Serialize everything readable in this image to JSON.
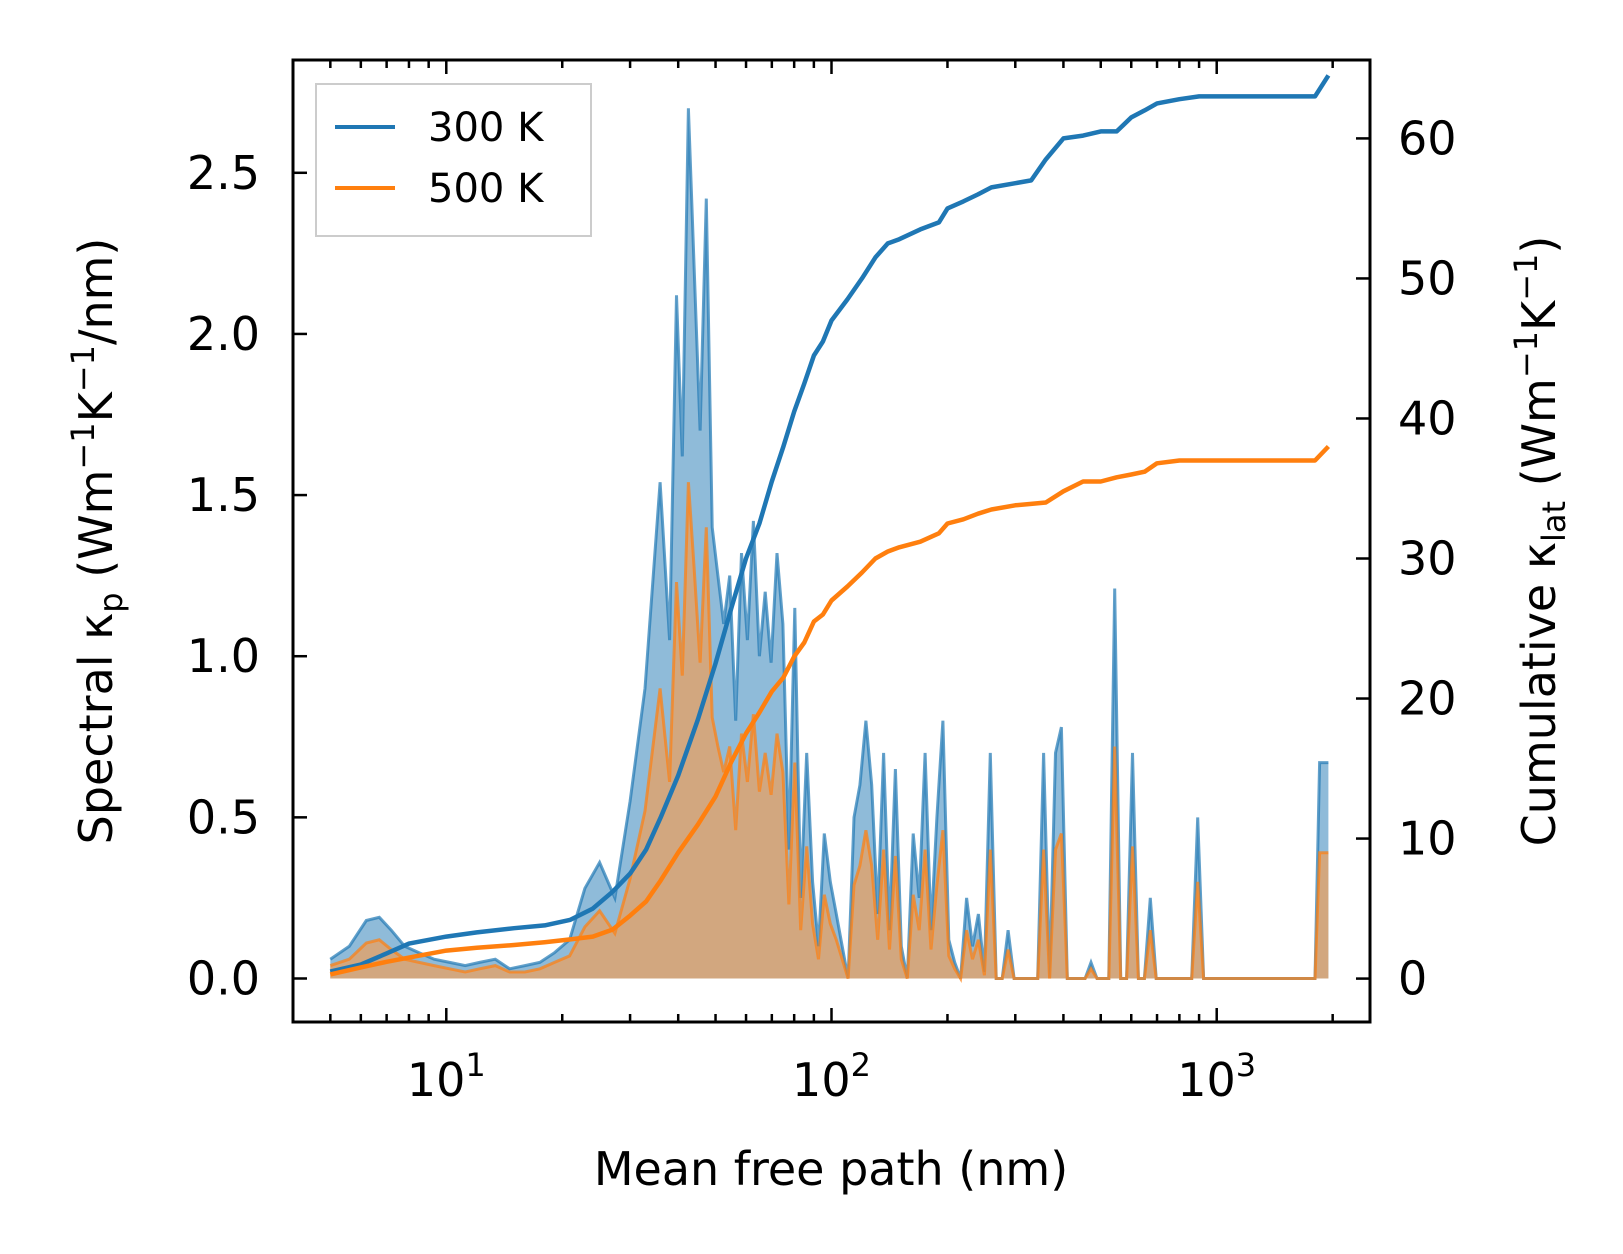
{
  "chart_data": {
    "type": "area",
    "xlabel": "Mean free path (nm)",
    "ylabel_left": {
      "main": "Spectral κ",
      "sub": "p",
      "units_open": " (Wm",
      "sup1": "−1",
      "k": "K",
      "sup2": "−1",
      "units_close": "/nm)"
    },
    "ylabel_right": {
      "main": "Cumulative κ",
      "sub": "lat",
      "units_open": " (Wm",
      "sup1": "−1",
      "k": "K",
      "sup2": "−1",
      "units_close": ")"
    },
    "x_scale": "log",
    "xlim": [
      4,
      2500
    ],
    "ylim_left": [
      -0.135,
      2.85
    ],
    "ylim_right": [
      -3.1,
      65.6
    ],
    "x_ticks": [
      {
        "value": 10,
        "base": "10",
        "exp": "1"
      },
      {
        "value": 100,
        "base": "10",
        "exp": "2"
      },
      {
        "value": 1000,
        "base": "10",
        "exp": "3"
      }
    ],
    "y_ticks_left": [
      {
        "value": 0.0,
        "label": "0.0"
      },
      {
        "value": 0.5,
        "label": "0.5"
      },
      {
        "value": 1.0,
        "label": "1.0"
      },
      {
        "value": 1.5,
        "label": "1.5"
      },
      {
        "value": 2.0,
        "label": "2.0"
      },
      {
        "value": 2.5,
        "label": "2.5"
      }
    ],
    "y_ticks_right": [
      {
        "value": 0,
        "label": "0"
      },
      {
        "value": 10,
        "label": "10"
      },
      {
        "value": 20,
        "label": "20"
      },
      {
        "value": 30,
        "label": "30"
      },
      {
        "value": 40,
        "label": "40"
      },
      {
        "value": 50,
        "label": "50"
      },
      {
        "value": 60,
        "label": "60"
      }
    ],
    "legend": {
      "position": "top-left",
      "entries": [
        {
          "label": "300 K",
          "color": "#1f77b4"
        },
        {
          "label": "500 K",
          "color": "#ff7f0e"
        }
      ]
    },
    "spectral_series": [
      {
        "name": "300 K",
        "color": "#1f77b4",
        "fill": "#1f77b4",
        "x": [
          5.0,
          5.6,
          6.2,
          6.7,
          7.2,
          7.8,
          8.5,
          9.3,
          10.2,
          11.2,
          12.2,
          13.4,
          14.6,
          16.0,
          17.5,
          19.1,
          20.9,
          22.9,
          25.0,
          27.4,
          30.0,
          32.8,
          35.9,
          38.0,
          39.6,
          41.0,
          42.5,
          44.0,
          45.6,
          47.3,
          49.0,
          50.7,
          52.5,
          54.4,
          56.4,
          58.4,
          60.5,
          62.7,
          65.0,
          67.3,
          69.7,
          72.2,
          74.8,
          77.5,
          80.3,
          83.2,
          86.2,
          89.3,
          92.5,
          95.8,
          99.3,
          102.9,
          106.6,
          110.4,
          114.4,
          118.5,
          122.8,
          127.2,
          131.8,
          136.5,
          141.4,
          146.5,
          151.8,
          157.3,
          163.0,
          168.9,
          175.0,
          181.3,
          187.8,
          194.6,
          201.6,
          208.9,
          216.4,
          224.2,
          232.3,
          240.7,
          249.4,
          258.4,
          267.7,
          277.4,
          287.4,
          297.8,
          308.5,
          319.6,
          331.1,
          343.0,
          355.4,
          368.2,
          381.5,
          395.2,
          409.5,
          424.3,
          439.6,
          455.4,
          471.8,
          488.8,
          506.4,
          524.7,
          543.6,
          563.2,
          583.5,
          604.5,
          626.3,
          648.9,
          672.3,
          696.5,
          721.6,
          747.6,
          774.6,
          802.5,
          831.4,
          861.4,
          892.4,
          924.6,
          957.9,
          992.4,
          1500.0,
          1800.0,
          1850.0,
          1950.0
        ],
        "y": [
          0.06,
          0.1,
          0.18,
          0.19,
          0.15,
          0.1,
          0.08,
          0.06,
          0.05,
          0.04,
          0.05,
          0.06,
          0.03,
          0.04,
          0.05,
          0.08,
          0.12,
          0.28,
          0.36,
          0.25,
          0.55,
          0.9,
          1.54,
          1.05,
          2.12,
          1.62,
          2.7,
          2.2,
          1.7,
          2.42,
          1.4,
          1.25,
          1.1,
          1.25,
          0.8,
          1.32,
          1.05,
          1.42,
          1.0,
          1.2,
          0.98,
          1.32,
          1.1,
          0.4,
          1.15,
          0.25,
          0.7,
          0.3,
          0.1,
          0.45,
          0.3,
          0.2,
          0.1,
          0.0,
          0.5,
          0.6,
          0.8,
          0.6,
          0.2,
          0.7,
          0.15,
          0.65,
          0.1,
          0.0,
          0.45,
          0.25,
          0.7,
          0.15,
          0.5,
          0.8,
          0.12,
          0.05,
          0.0,
          0.25,
          0.1,
          0.2,
          0.02,
          0.7,
          0.0,
          0.0,
          0.15,
          0.0,
          0.0,
          0.0,
          0.0,
          0.0,
          0.7,
          0.0,
          0.7,
          0.78,
          0.0,
          0.0,
          0.0,
          0.0,
          0.05,
          0.0,
          0.0,
          0.0,
          1.21,
          0.0,
          0.0,
          0.7,
          0.0,
          0.0,
          0.25,
          0.0,
          0.0,
          0.0,
          0.0,
          0.0,
          0.0,
          0.0,
          0.5,
          0.0,
          0.0,
          0.0,
          0.0,
          0.0,
          0.67,
          0.67
        ]
      },
      {
        "name": "500 K",
        "color": "#ff7f0e",
        "fill": "#e8a060",
        "x": [
          5.0,
          5.6,
          6.2,
          6.7,
          7.2,
          7.8,
          8.5,
          9.3,
          10.2,
          11.2,
          12.2,
          13.4,
          14.6,
          16.0,
          17.5,
          19.1,
          20.9,
          22.9,
          25.0,
          27.4,
          30.0,
          32.8,
          35.9,
          38.0,
          39.6,
          41.0,
          42.5,
          44.0,
          45.6,
          47.3,
          49.0,
          50.7,
          52.5,
          54.4,
          56.4,
          58.4,
          60.5,
          62.7,
          65.0,
          67.3,
          69.7,
          72.2,
          74.8,
          77.5,
          80.3,
          83.2,
          86.2,
          89.3,
          92.5,
          95.8,
          99.3,
          102.9,
          106.6,
          110.4,
          114.4,
          118.5,
          122.8,
          127.2,
          131.8,
          136.5,
          141.4,
          146.5,
          151.8,
          157.3,
          163.0,
          168.9,
          175.0,
          181.3,
          187.8,
          194.6,
          201.6,
          208.9,
          216.4,
          224.2,
          232.3,
          240.7,
          249.4,
          258.4,
          267.7,
          277.4,
          287.4,
          297.8,
          308.5,
          319.6,
          331.1,
          343.0,
          355.4,
          368.2,
          381.5,
          395.2,
          409.5,
          424.3,
          439.6,
          455.4,
          471.8,
          488.8,
          506.4,
          524.7,
          543.6,
          563.2,
          583.5,
          604.5,
          626.3,
          648.9,
          672.3,
          696.5,
          721.6,
          747.6,
          774.6,
          802.5,
          831.4,
          861.4,
          892.4,
          924.6,
          957.9,
          992.4,
          1500.0,
          1800.0,
          1850.0,
          1950.0
        ],
        "y": [
          0.04,
          0.06,
          0.11,
          0.12,
          0.09,
          0.06,
          0.05,
          0.04,
          0.03,
          0.02,
          0.03,
          0.04,
          0.02,
          0.02,
          0.03,
          0.05,
          0.07,
          0.16,
          0.21,
          0.14,
          0.31,
          0.52,
          0.9,
          0.61,
          1.23,
          0.94,
          1.54,
          1.27,
          0.98,
          1.4,
          0.81,
          0.72,
          0.64,
          0.72,
          0.46,
          0.76,
          0.61,
          0.82,
          0.58,
          0.7,
          0.57,
          0.76,
          0.64,
          0.23,
          0.67,
          0.15,
          0.41,
          0.17,
          0.06,
          0.26,
          0.17,
          0.12,
          0.06,
          0.0,
          0.29,
          0.35,
          0.46,
          0.35,
          0.12,
          0.4,
          0.09,
          0.38,
          0.06,
          0.0,
          0.26,
          0.15,
          0.4,
          0.09,
          0.29,
          0.46,
          0.07,
          0.03,
          0.0,
          0.15,
          0.06,
          0.12,
          0.01,
          0.4,
          0.0,
          0.0,
          0.09,
          0.0,
          0.0,
          0.0,
          0.0,
          0.0,
          0.4,
          0.0,
          0.4,
          0.45,
          0.0,
          0.0,
          0.0,
          0.0,
          0.03,
          0.0,
          0.0,
          0.0,
          0.72,
          0.0,
          0.0,
          0.41,
          0.0,
          0.0,
          0.15,
          0.0,
          0.0,
          0.0,
          0.0,
          0.0,
          0.0,
          0.0,
          0.3,
          0.0,
          0.0,
          0.0,
          0.0,
          0.0,
          0.39,
          0.39
        ]
      }
    ],
    "cumulative_series": [
      {
        "name": "300 K",
        "color": "#1f77b4",
        "x": [
          5,
          6,
          7,
          8,
          10,
          12,
          15,
          18,
          21,
          24,
          27,
          30,
          33,
          36,
          40,
          45,
          50,
          55,
          60,
          65,
          70,
          75,
          80,
          85,
          90,
          95,
          100,
          110,
          120,
          130,
          140,
          150,
          170,
          190,
          200,
          220,
          240,
          260,
          300,
          330,
          360,
          400,
          450,
          500,
          550,
          600,
          650,
          700,
          800,
          900,
          1000,
          1500,
          1800,
          1950
        ],
        "y": [
          0.5,
          1.0,
          1.8,
          2.5,
          3.0,
          3.3,
          3.6,
          3.8,
          4.2,
          5.0,
          6.2,
          7.5,
          9.2,
          11.5,
          14.5,
          18.5,
          22.5,
          26.5,
          30.0,
          32.5,
          35.5,
          38.0,
          40.5,
          42.5,
          44.5,
          45.5,
          47.0,
          48.5,
          50.0,
          51.5,
          52.5,
          52.8,
          53.5,
          54.0,
          55.0,
          55.5,
          56.0,
          56.5,
          56.8,
          57.0,
          58.5,
          60.0,
          60.2,
          60.5,
          60.5,
          61.5,
          62.0,
          62.5,
          62.8,
          63.0,
          63.0,
          63.0,
          63.0,
          64.5
        ]
      },
      {
        "name": "500 K",
        "color": "#ff7f0e",
        "x": [
          5,
          6,
          7,
          8,
          10,
          12,
          15,
          18,
          21,
          24,
          27,
          30,
          33,
          36,
          40,
          45,
          50,
          55,
          60,
          65,
          70,
          75,
          80,
          85,
          90,
          95,
          100,
          110,
          120,
          130,
          140,
          150,
          170,
          190,
          200,
          220,
          240,
          260,
          300,
          330,
          360,
          400,
          450,
          500,
          550,
          600,
          650,
          700,
          800,
          900,
          1000,
          1500,
          1800,
          1950
        ],
        "y": [
          0.3,
          0.8,
          1.2,
          1.5,
          2.0,
          2.2,
          2.4,
          2.6,
          2.8,
          3.0,
          3.5,
          4.5,
          5.5,
          7.0,
          9.0,
          11.0,
          13.0,
          15.5,
          17.5,
          19.0,
          20.5,
          21.5,
          23.0,
          24.0,
          25.5,
          26.0,
          27.0,
          28.0,
          29.0,
          30.0,
          30.5,
          30.8,
          31.2,
          31.8,
          32.5,
          32.8,
          33.2,
          33.5,
          33.8,
          33.9,
          34.0,
          34.8,
          35.5,
          35.5,
          35.8,
          36.0,
          36.2,
          36.8,
          37.0,
          37.0,
          37.0,
          37.0,
          37.0,
          38.0
        ]
      }
    ]
  }
}
